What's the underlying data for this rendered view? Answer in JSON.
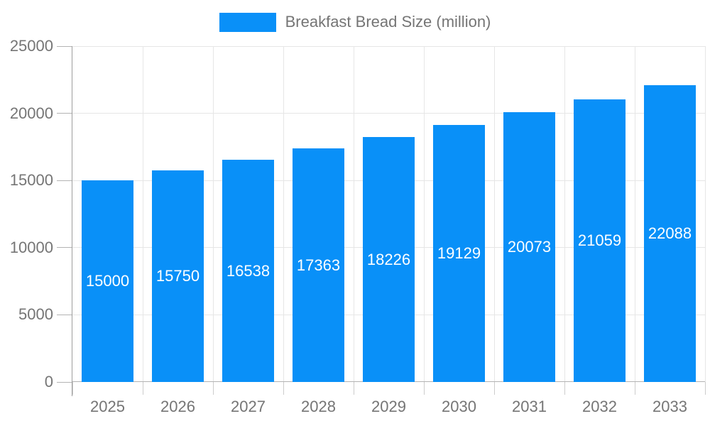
{
  "chart_data": {
    "type": "bar",
    "title": "Breakfast Bread Size (million)",
    "categories": [
      "2025",
      "2026",
      "2027",
      "2028",
      "2029",
      "2030",
      "2031",
      "2032",
      "2033"
    ],
    "values": [
      15000,
      15750,
      16538,
      17363,
      18226,
      19129,
      20073,
      21059,
      22088
    ],
    "bar_labels": [
      "15000",
      "15750",
      "16538",
      "17363",
      "18226",
      "19129",
      "20073",
      "21059",
      "22088"
    ],
    "xlabel": "",
    "ylabel": "",
    "ylim": [
      0,
      25000
    ],
    "yticks": [
      0,
      5000,
      10000,
      15000,
      20000,
      25000
    ],
    "ytick_labels": [
      "0",
      "5000",
      "10000",
      "15000",
      "20000",
      "25000"
    ],
    "legend_position": "top-center",
    "grid": true,
    "value_labels_inside_bars": true,
    "colors": {
      "bar": "#0990f8",
      "bar_label_text": "#ffffff",
      "axis_text": "#757575",
      "grid_line": "#e6e6e6",
      "axis_line": "#b3b3b3"
    }
  }
}
